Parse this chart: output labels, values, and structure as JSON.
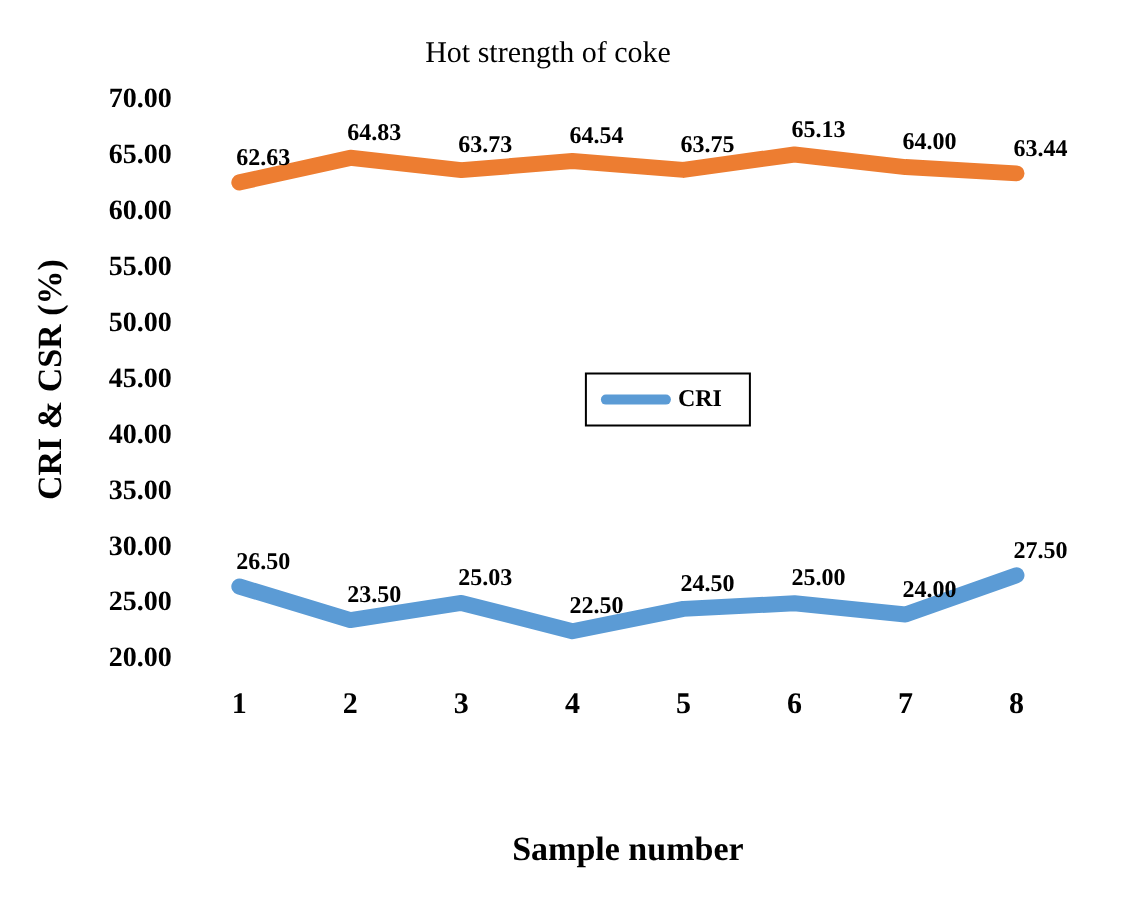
{
  "chart_data": {
    "type": "line",
    "title": "Hot strength of coke",
    "xlabel": "Sample number",
    "ylabel": "CRI & CSR (%)",
    "categories": [
      "1",
      "2",
      "3",
      "4",
      "5",
      "6",
      "7",
      "8"
    ],
    "series": [
      {
        "name": "CRI",
        "color": "#5b9bd5",
        "values": [
          26.5,
          23.5,
          25.03,
          22.5,
          24.5,
          25.0,
          24.0,
          27.5
        ],
        "value_labels": [
          "26.50",
          "23.50",
          "25.03",
          "22.50",
          "24.50",
          "25.00",
          "24.00",
          "27.50"
        ]
      },
      {
        "color": "#ed7d31",
        "values": [
          62.63,
          64.83,
          63.73,
          64.54,
          63.75,
          65.13,
          64.0,
          63.44
        ],
        "value_labels": [
          "62.63",
          "64.83",
          "63.73",
          "64.54",
          "63.75",
          "65.13",
          "64.00",
          "63.44"
        ]
      }
    ],
    "ylim": [
      20,
      70
    ],
    "yticks": [
      {
        "value": 20,
        "label": "20.00"
      },
      {
        "value": 25,
        "label": "25.00"
      },
      {
        "value": 30,
        "label": "30.00"
      },
      {
        "value": 35,
        "label": "35.00"
      },
      {
        "value": 40,
        "label": "40.00"
      },
      {
        "value": 45,
        "label": "45.00"
      },
      {
        "value": 50,
        "label": "50.00"
      },
      {
        "value": 55,
        "label": "55.00"
      },
      {
        "value": 60,
        "label": "60.00"
      },
      {
        "value": 65,
        "label": "65.00"
      },
      {
        "value": 70,
        "label": "70.00"
      }
    ],
    "grid": false,
    "legend": "center",
    "marker": "none",
    "line_style": "solid"
  }
}
